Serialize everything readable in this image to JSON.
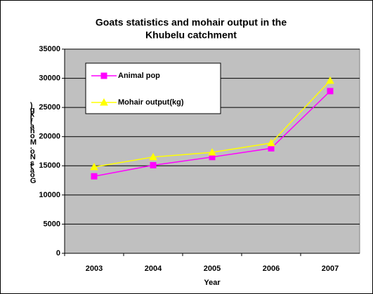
{
  "chart_data": {
    "type": "line",
    "title": "Goats statistics and mohair output in the",
    "subtitle": "Khubelu catchment",
    "x_label": "Year",
    "y_label": "Goats No. Mohair(kg)",
    "categories": [
      "2003",
      "2004",
      "2005",
      "2006",
      "2007"
    ],
    "series": [
      {
        "name": "Animal pop",
        "color": "#ff00ff",
        "marker": "square",
        "values": [
          13200,
          15100,
          16500,
          18000,
          27800
        ]
      },
      {
        "name": "Mohair output(kg)",
        "color": "#ffff00",
        "marker": "triangle",
        "values": [
          14800,
          16500,
          17300,
          18900,
          29600
        ]
      }
    ],
    "ylim": [
      0,
      35000
    ],
    "yticks": [
      0,
      5000,
      10000,
      15000,
      20000,
      25000,
      30000,
      35000
    ],
    "grid": true,
    "plot_background": "#c0c0c0"
  }
}
